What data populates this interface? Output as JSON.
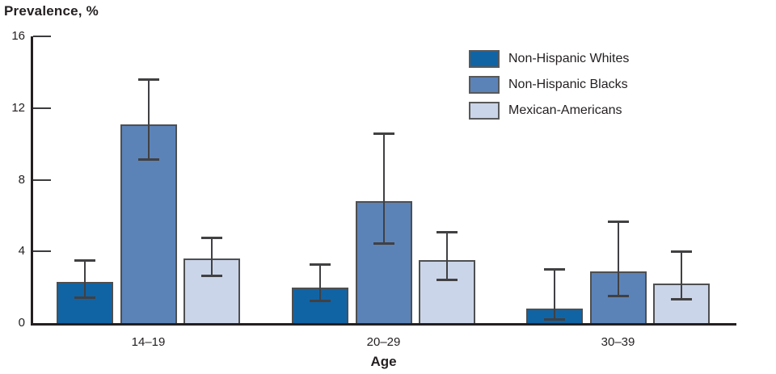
{
  "chart_data": {
    "type": "bar",
    "title": "Prevalence, %",
    "xlabel": "Age",
    "ylabel": "Prevalence, %",
    "categories": [
      "14–19",
      "20–29",
      "30–39"
    ],
    "ylim": [
      0,
      16
    ],
    "yticks": [
      0,
      4,
      8,
      12,
      16
    ],
    "grid": false,
    "legend_position": "top-right",
    "error_bars": "95% confidence interval whiskers",
    "series": [
      {
        "name": "Non-Hispanic Whites",
        "color": "#1164a4",
        "values": [
          2.3,
          2.0,
          0.8
        ],
        "ci_low": [
          1.4,
          1.2,
          0.2
        ],
        "ci_high": [
          3.5,
          3.3,
          3.0
        ]
      },
      {
        "name": "Non-Hispanic Blacks",
        "color": "#5b83b8",
        "values": [
          11.1,
          6.8,
          2.9
        ],
        "ci_low": [
          9.1,
          4.4,
          1.5
        ],
        "ci_high": [
          13.6,
          10.6,
          5.7
        ]
      },
      {
        "name": "Mexican-Americans",
        "color": "#cbd5e9",
        "values": [
          3.6,
          3.5,
          2.2
        ],
        "ci_low": [
          2.6,
          2.4,
          1.3
        ],
        "ci_high": [
          4.8,
          5.1,
          4.0
        ]
      }
    ]
  }
}
